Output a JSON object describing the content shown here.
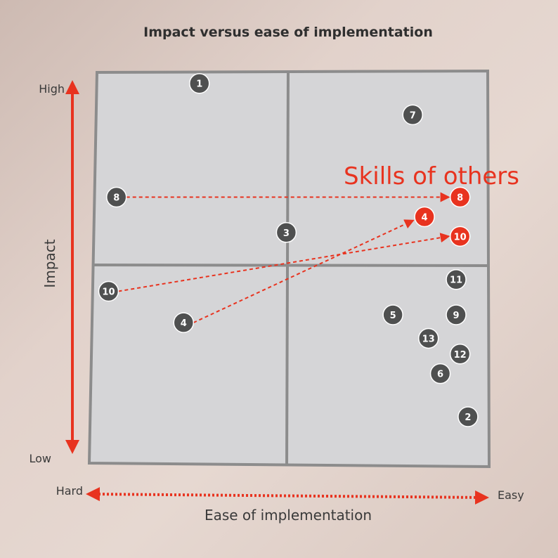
{
  "chart_data": {
    "type": "scatter",
    "title": "Impact versus ease of implementation",
    "xlabel": "Ease of implementation",
    "ylabel": "Impact",
    "x_axis_ends": {
      "low": "Hard",
      "high": "Easy"
    },
    "y_axis_ends": {
      "low": "Low",
      "high": "High"
    },
    "xlim": [
      0,
      10
    ],
    "ylim": [
      0,
      10
    ],
    "quadrant_divider": {
      "x": 5,
      "y": 5
    },
    "annotation": "Skills of others",
    "colors": {
      "base_point": "#4f5050",
      "moved_point": "#e8331f",
      "arrow": "#e8331f",
      "grid": "#8c8c8c",
      "panel": "#d4d4d6"
    },
    "points": [
      {
        "label": "1",
        "x": 2.7,
        "y": 9.7,
        "highlight": false
      },
      {
        "label": "7",
        "x": 8.1,
        "y": 8.9,
        "highlight": false
      },
      {
        "label": "8",
        "x": 0.6,
        "y": 6.8,
        "highlight": false
      },
      {
        "label": "3",
        "x": 4.9,
        "y": 5.9,
        "highlight": false
      },
      {
        "label": "10",
        "x": 0.4,
        "y": 4.4,
        "highlight": false
      },
      {
        "label": "4",
        "x": 2.3,
        "y": 3.6,
        "highlight": false
      },
      {
        "label": "11",
        "x": 9.2,
        "y": 4.7,
        "highlight": false
      },
      {
        "label": "5",
        "x": 7.6,
        "y": 3.8,
        "highlight": false
      },
      {
        "label": "9",
        "x": 9.2,
        "y": 3.8,
        "highlight": false
      },
      {
        "label": "13",
        "x": 8.5,
        "y": 3.2,
        "highlight": false
      },
      {
        "label": "12",
        "x": 9.3,
        "y": 2.8,
        "highlight": false
      },
      {
        "label": "6",
        "x": 8.8,
        "y": 2.3,
        "highlight": false
      },
      {
        "label": "2",
        "x": 9.5,
        "y": 1.2,
        "highlight": false
      },
      {
        "label": "8",
        "x": 9.3,
        "y": 6.8,
        "highlight": true
      },
      {
        "label": "4",
        "x": 8.4,
        "y": 6.3,
        "highlight": true
      },
      {
        "label": "10",
        "x": 9.3,
        "y": 5.8,
        "highlight": true
      }
    ],
    "arrows": [
      {
        "from_label": "8",
        "from": [
          0.6,
          6.8
        ],
        "to": [
          9.0,
          6.8
        ]
      },
      {
        "from_label": "10",
        "from": [
          0.4,
          4.4
        ],
        "to": [
          9.0,
          5.8
        ]
      },
      {
        "from_label": "4",
        "from": [
          2.3,
          3.6
        ],
        "to": [
          8.1,
          6.2
        ]
      }
    ]
  }
}
